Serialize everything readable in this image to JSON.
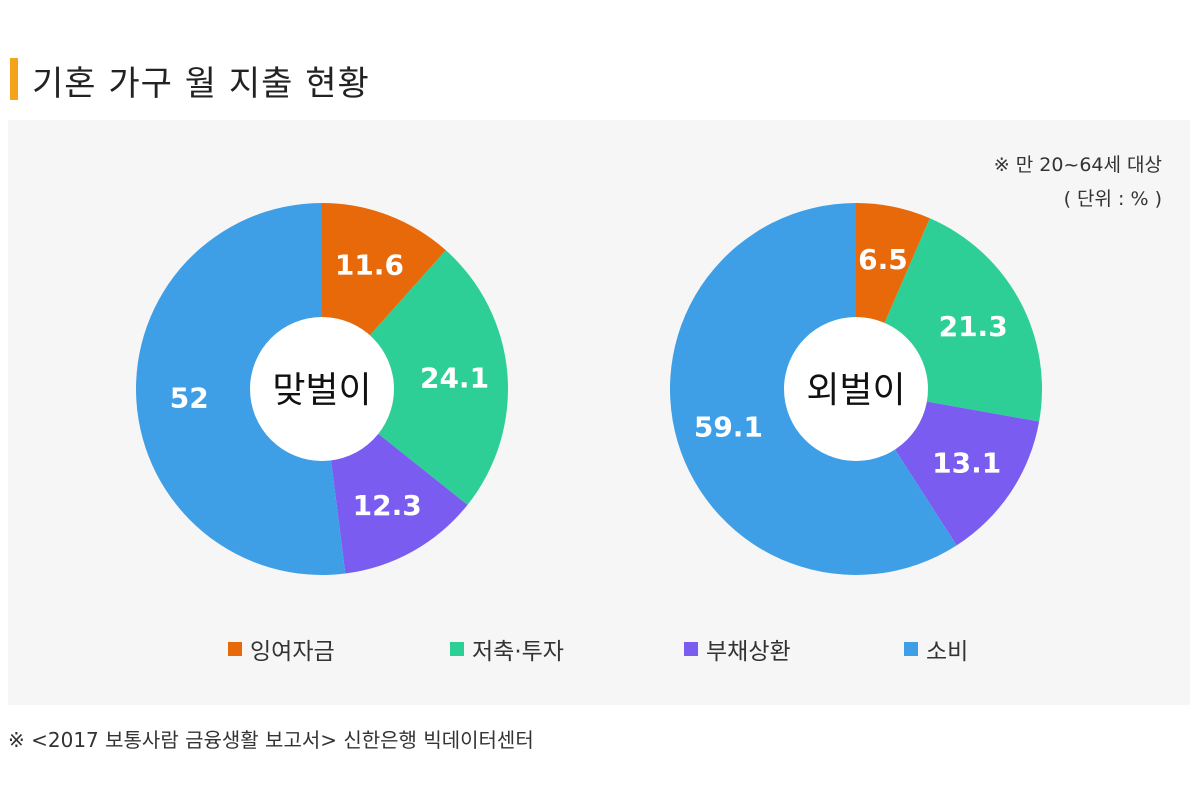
{
  "title": "기혼 가구 월 지출 현황",
  "note_line1": "※ 만 20~64세 대상",
  "note_line2": "( 단위 : % )",
  "footer": "※ <2017 보통사람 금융생활 보고서> 신한은행 빅데이터센터",
  "colors": {
    "accent": "#f5a31a",
    "surplus": "#e8690a",
    "savings": "#2dcf96",
    "debt": "#7a5cf0",
    "consumption": "#3f9fe6"
  },
  "chart_data": [
    {
      "type": "pie",
      "subtype": "donut",
      "center_label": "맞벌이",
      "categories": [
        "잉여자금",
        "저축·투자",
        "부채상환",
        "소비"
      ],
      "values": [
        11.6,
        24.1,
        12.3,
        52
      ],
      "labels": [
        "11.6",
        "24.1",
        "12.3",
        "52"
      ],
      "unit": "%"
    },
    {
      "type": "pie",
      "subtype": "donut",
      "center_label": "외벌이",
      "categories": [
        "잉여자금",
        "저축·투자",
        "부채상환",
        "소비"
      ],
      "values": [
        6.5,
        21.3,
        13.1,
        59.1
      ],
      "labels": [
        "6.5",
        "21.3",
        "13.1",
        "59.1"
      ],
      "unit": "%"
    }
  ],
  "legend": [
    {
      "label": "잉여자금",
      "color": "#e8690a"
    },
    {
      "label": "저축·투자",
      "color": "#2dcf96"
    },
    {
      "label": "부채상환",
      "color": "#7a5cf0"
    },
    {
      "label": "소비",
      "color": "#3f9fe6"
    }
  ]
}
